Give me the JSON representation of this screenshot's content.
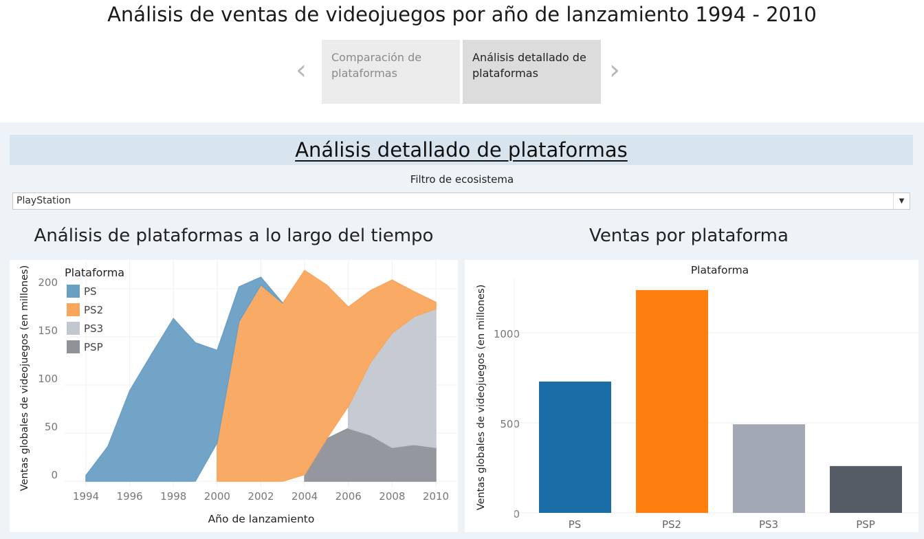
{
  "title": "Análisis de ventas de videojuegos por año de lanzamiento 1994 - 2010",
  "nav": {
    "prev_icon": "chevron-left-icon",
    "next_icon": "chevron-right-icon",
    "tabs": [
      {
        "label": "Comparación de plataformas",
        "active": false
      },
      {
        "label": "Análisis detallado de plataformas",
        "active": true
      }
    ]
  },
  "section_title": "Análisis detallado de plataformas",
  "filter": {
    "label": "Filtro de ecosistema",
    "value": "PlayStation"
  },
  "colors": {
    "PS": "#6a9fc4",
    "PS2": "#f9a55c",
    "PS3": "#c3c7d0",
    "PSP": "#8e9299",
    "bar_PS": "#1a6ca5",
    "bar_PS2": "#ff7f0e",
    "bar_PS3": "#a3a9b4",
    "bar_PSP": "#565c66"
  },
  "chart_data": [
    {
      "type": "area",
      "stacked": true,
      "title": "Análisis de plataformas a lo largo del tiempo",
      "xlabel": "Año de lanzamiento",
      "ylabel": "Ventas globales de videojuegos (en millones)",
      "legend_title": "Plataforma",
      "legend_position": "top-left",
      "x": [
        1994,
        1995,
        1996,
        1997,
        1998,
        1999,
        2000,
        2001,
        2002,
        2003,
        2004,
        2005,
        2006,
        2007,
        2008,
        2009,
        2010
      ],
      "xticks": [
        "1994",
        "1996",
        "1998",
        "2000",
        "2002",
        "2004",
        "2006",
        "2008",
        "2010"
      ],
      "yticks": [
        "0",
        "50",
        "100",
        "150",
        "200"
      ],
      "ylim": [
        0,
        225
      ],
      "grid": true,
      "series": [
        {
          "name": "PS",
          "values": [
            6,
            36,
            94,
            132,
            169,
            144,
            96,
            36,
            8,
            0,
            null,
            null,
            null,
            null,
            null,
            null,
            null
          ]
        },
        {
          "name": "PS2",
          "values": [
            null,
            null,
            null,
            null,
            null,
            null,
            40,
            166,
            204,
            185,
            212,
            160,
            103,
            75,
            55,
            26,
            7
          ]
        },
        {
          "name": "PS3",
          "values": [
            null,
            null,
            null,
            null,
            null,
            null,
            null,
            null,
            null,
            null,
            null,
            null,
            23,
            75,
            119,
            133,
            144
          ]
        },
        {
          "name": "PSP",
          "values": [
            null,
            null,
            null,
            null,
            null,
            null,
            null,
            null,
            null,
            null,
            7,
            44,
            55,
            48,
            35,
            38,
            35
          ]
        }
      ]
    },
    {
      "type": "bar",
      "title": "Ventas por plataforma",
      "header": "Plataforma",
      "ylabel": "Ventas globales de videojuegos (en millones)",
      "categories": [
        "PS",
        "PS2",
        "PS3",
        "PSP"
      ],
      "values": [
        729,
        1237,
        492,
        260
      ],
      "yticks": [
        "0",
        "500",
        "1000"
      ],
      "ylim": [
        0,
        1300
      ],
      "grid": true
    }
  ]
}
